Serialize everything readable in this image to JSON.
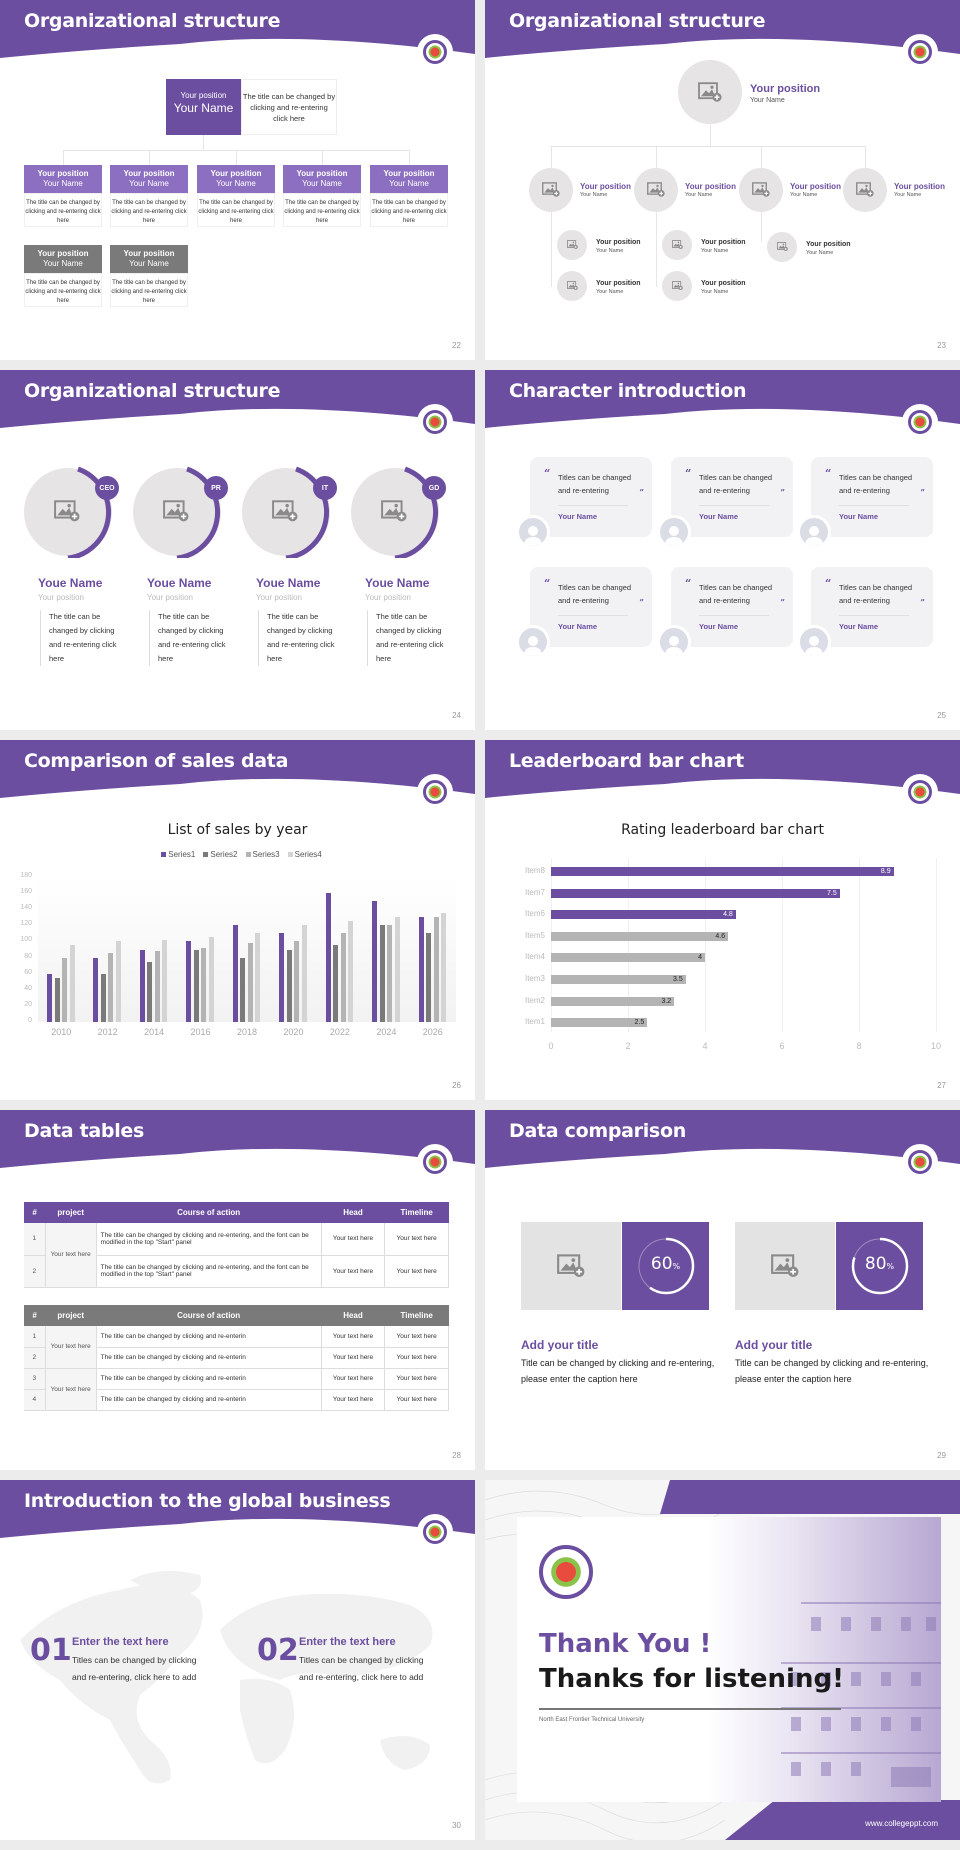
{
  "theme": {
    "accent": "#6b4e9f",
    "accent_light": "#8c6fc0",
    "gray_dark": "#7a7a7a",
    "gray_mid": "#b4b4b4",
    "gray_light": "#d4d4d4",
    "placeholder_bg": "#e6e4e4"
  },
  "slides": [
    {
      "title": "Organizational structure",
      "page": "22",
      "top": {
        "position": "Your position",
        "name": "Your Name",
        "desc": "The title can be changed by clicking and re-entering click here"
      },
      "cards": [
        {
          "position": "Your position",
          "name": "Your Name",
          "desc": "The title can be changed by clicking and re-entering click here",
          "style": "purple"
        },
        {
          "position": "Your position",
          "name": "Your Name",
          "desc": "The title can be changed by clicking and re-entering click here",
          "style": "purple"
        },
        {
          "position": "Your position",
          "name": "Your Name",
          "desc": "The title can be changed by clicking and re-entering click here",
          "style": "purple"
        },
        {
          "position": "Your position",
          "name": "Your Name",
          "desc": "The title can be changed by clicking and re-entering click here",
          "style": "purple"
        },
        {
          "position": "Your position",
          "name": "Your Name",
          "desc": "The title can be changed by clicking and re-entering click here",
          "style": "purple"
        },
        {
          "position": "Your position",
          "name": "Your Name",
          "desc": "The title can be changed by clicking and re-entering click here",
          "style": "gray"
        },
        {
          "position": "Your position",
          "name": "Your Name",
          "desc": "The title can be changed by clicking and re-entering click here",
          "style": "gray"
        }
      ]
    },
    {
      "title": "Organizational structure",
      "page": "23",
      "top": {
        "position": "Your position",
        "name": "Your Name"
      },
      "level1": [
        {
          "position": "Your position",
          "name": "Your Name"
        },
        {
          "position": "Your position",
          "name": "Your Name"
        },
        {
          "position": "Your position",
          "name": "Your Name"
        },
        {
          "position": "Your position",
          "name": "Your Name"
        }
      ],
      "level2": [
        {
          "position": "Your position",
          "name": "Your Name"
        },
        {
          "position": "Your position",
          "name": "Your Name"
        },
        {
          "position": "Your position",
          "name": "Your Name"
        },
        {
          "position": "Your position",
          "name": "Your Name"
        },
        {
          "position": "Your position",
          "name": "Your Name"
        }
      ]
    },
    {
      "title": "Organizational structure",
      "page": "24",
      "people": [
        {
          "badge": "CEO",
          "name": "Youe Name",
          "position": "Your position",
          "desc": "The title can be changed by clicking and re-entering click here"
        },
        {
          "badge": "PR",
          "name": "Youe Name",
          "position": "Your position",
          "desc": "The title can be changed by clicking and re-entering click here"
        },
        {
          "badge": "IT",
          "name": "Youe Name",
          "position": "Your position",
          "desc": "The title can be changed by clicking and re-entering click here"
        },
        {
          "badge": "GD",
          "name": "Youe Name",
          "position": "Your position",
          "desc": "The title can be changed by clicking and re-entering click here"
        }
      ]
    },
    {
      "title": "Character introduction",
      "page": "25",
      "quotes": [
        {
          "text": "Titles can be changed and re-entering",
          "name": "Your Name"
        },
        {
          "text": "Titles can be changed and re-entering",
          "name": "Your Name"
        },
        {
          "text": "Titles can be changed and re-entering",
          "name": "Your Name"
        },
        {
          "text": "Titles can be changed and re-entering",
          "name": "Your Name"
        },
        {
          "text": "Titles can be changed and re-entering",
          "name": "Your Name"
        },
        {
          "text": "Titles can be changed and re-entering",
          "name": "Your Name"
        }
      ],
      "open_quote": "“",
      "close_quote": "”"
    },
    {
      "title": "Comparison of sales data",
      "page": "26"
    },
    {
      "title": "Leaderboard bar chart",
      "page": "27"
    },
    {
      "title": "Data tables",
      "page": "28",
      "headers": [
        "#",
        "project",
        "Course of action",
        "Head",
        "Timeline"
      ],
      "table1": {
        "project": "Your text here",
        "rows": [
          {
            "n": "1",
            "action": "The title can be changed by clicking and re-entering, and the font can be modified in the top \"Start\" panel",
            "head": "Your text here",
            "timeline": "Your text here"
          },
          {
            "n": "2",
            "action": "The title can be changed by clicking and re-entering, and the font can be modified in the top \"Start\" panel",
            "head": "Your text here",
            "timeline": "Your text here"
          }
        ]
      },
      "table2": {
        "projects": [
          "Your text here",
          "Your text here"
        ],
        "rows": [
          {
            "n": "1",
            "action": "The title can be changed by clicking and re-enterin",
            "head": "Your text here",
            "timeline": "Your text here"
          },
          {
            "n": "2",
            "action": "The title can be changed by clicking and re-enterin",
            "head": "Your text here",
            "timeline": "Your text here"
          },
          {
            "n": "3",
            "action": "The title can be changed by clicking and re-enterin",
            "head": "Your text here",
            "timeline": "Your text here"
          },
          {
            "n": "4",
            "action": "The title can be changed by clicking and re-enterin",
            "head": "Your text here",
            "timeline": "Your text here"
          }
        ]
      }
    },
    {
      "title": "Data comparison",
      "page": "29",
      "items": [
        {
          "value": "60",
          "unit": "%",
          "title": "Add your title",
          "desc": "Title can be changed by clicking and re-entering, please enter the caption here"
        },
        {
          "value": "80",
          "unit": "%",
          "title": "Add your title",
          "desc": "Title can be changed by clicking and re-entering, please enter the caption here"
        }
      ]
    },
    {
      "title": "Introduction to the global business",
      "page": "30",
      "items": [
        {
          "num": "01",
          "title": "Enter the text here",
          "desc": "Titles can be changed by clicking and re-entering, click here to add"
        },
        {
          "num": "02",
          "title": "Enter the text here",
          "desc": "Titles can be changed by clicking and re-entering, click here to add"
        }
      ]
    },
    {
      "thanks": "Thank You !",
      "subtitle": "Thanks for listening!",
      "university": "North East Frontier Technical University",
      "website": "www.collegeppt.com"
    }
  ],
  "chart_data": [
    {
      "type": "bar",
      "title": "List of sales by year",
      "categories": [
        "2010",
        "2012",
        "2014",
        "2016",
        "2018",
        "2020",
        "2022",
        "2024",
        "2026"
      ],
      "series": [
        {
          "name": "Series1",
          "color": "#6b4e9f",
          "values": [
            60,
            80,
            90,
            100,
            120,
            110,
            160,
            150,
            130
          ]
        },
        {
          "name": "Series2",
          "color": "#7a7a7a",
          "values": [
            55,
            60,
            75,
            90,
            80,
            90,
            96,
            120,
            110
          ]
        },
        {
          "name": "Series3",
          "color": "#b4b4b4",
          "values": [
            80,
            86,
            88,
            92,
            98,
            100,
            110,
            120,
            130
          ]
        },
        {
          "name": "Series4",
          "color": "#d4d4d4",
          "values": [
            95,
            100,
            102,
            105,
            110,
            120,
            126,
            130,
            135
          ]
        }
      ],
      "yticks": [
        "0",
        "20",
        "40",
        "60",
        "80",
        "100",
        "120",
        "140",
        "160",
        "180"
      ],
      "ylim": [
        0,
        180
      ],
      "xlabel": "",
      "ylabel": "",
      "legend_position": "top",
      "grid": true
    },
    {
      "type": "bar",
      "orientation": "horizontal",
      "title": "Rating leaderboard bar chart",
      "categories": [
        "Item8",
        "Item7",
        "Item6",
        "Item5",
        "Item4",
        "Item3",
        "Item2",
        "Item1"
      ],
      "values": [
        8.9,
        7.5,
        4.8,
        4.6,
        4,
        3.5,
        3.2,
        2.5
      ],
      "labels": [
        "8.9",
        "7.5",
        "4.8",
        "4.6",
        "4",
        "3.5",
        "3.2",
        "2.5"
      ],
      "highlight_top": 3,
      "xticks": [
        "0",
        "2",
        "4",
        "6",
        "8",
        "10"
      ],
      "xlim": [
        0,
        10
      ],
      "grid": true
    }
  ]
}
